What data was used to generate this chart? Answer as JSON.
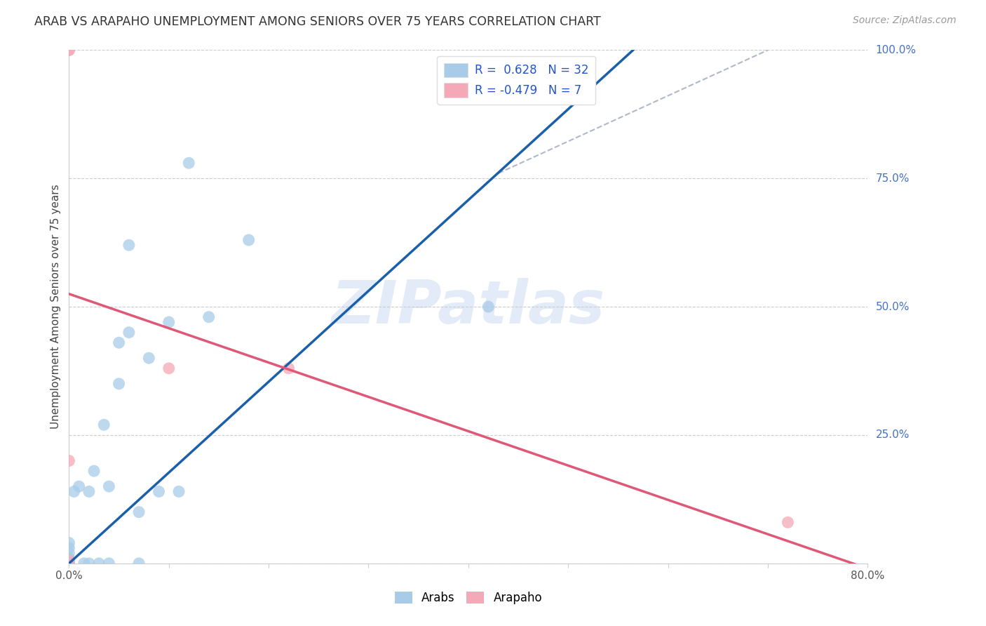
{
  "title": "ARAB VS ARAPAHO UNEMPLOYMENT AMONG SENIORS OVER 75 YEARS CORRELATION CHART",
  "source": "Source: ZipAtlas.com",
  "ylabel": "Unemployment Among Seniors over 75 years",
  "xlim": [
    0.0,
    0.8
  ],
  "ylim": [
    0.0,
    1.0
  ],
  "xticks": [
    0.0,
    0.1,
    0.2,
    0.3,
    0.4,
    0.5,
    0.6,
    0.7,
    0.8
  ],
  "xticklabels": [
    "0.0%",
    "",
    "",
    "",
    "",
    "",
    "",
    "",
    "80.0%"
  ],
  "ytick_vals": [
    0.0,
    0.25,
    0.5,
    0.75,
    1.0
  ],
  "ytick_labels": [
    "",
    "25.0%",
    "50.0%",
    "75.0%",
    "100.0%"
  ],
  "arab_R": 0.628,
  "arab_N": 32,
  "arapaho_R": -0.479,
  "arapaho_N": 7,
  "arab_color": "#a8cce8",
  "arapaho_color": "#f4a8b8",
  "arab_line_color": "#1a5faa",
  "arapaho_line_color": "#e05878",
  "legend_R_color": "#2255cc",
  "watermark": "ZIPatlas",
  "background_color": "#ffffff",
  "arab_x": [
    0.0,
    0.0,
    0.0,
    0.0,
    0.0,
    0.0,
    0.0,
    0.0,
    0.005,
    0.01,
    0.015,
    0.02,
    0.02,
    0.025,
    0.03,
    0.035,
    0.04,
    0.04,
    0.05,
    0.05,
    0.06,
    0.06,
    0.07,
    0.07,
    0.08,
    0.09,
    0.1,
    0.11,
    0.12,
    0.14,
    0.18,
    0.42
  ],
  "arab_y": [
    0.0,
    0.0,
    0.0,
    0.0,
    0.01,
    0.02,
    0.03,
    0.04,
    0.14,
    0.15,
    0.0,
    0.0,
    0.14,
    0.18,
    0.0,
    0.27,
    0.0,
    0.15,
    0.35,
    0.43,
    0.45,
    0.62,
    0.0,
    0.1,
    0.4,
    0.14,
    0.47,
    0.14,
    0.78,
    0.48,
    0.63,
    0.5
  ],
  "arapaho_x": [
    0.0,
    0.0,
    0.0,
    0.0,
    0.1,
    0.22,
    0.72
  ],
  "arapaho_y": [
    0.005,
    1.0,
    1.0,
    0.2,
    0.38,
    0.38,
    0.08
  ],
  "arab_line_x0": 0.0,
  "arab_line_x1": 0.565,
  "arab_line_y0": 0.0,
  "arab_line_y1": 1.0,
  "arapaho_line_x0": 0.0,
  "arapaho_line_x1": 0.8,
  "arapaho_line_y0": 0.525,
  "arapaho_line_y1": -0.01,
  "dash_line_x0": 0.43,
  "dash_line_x1": 0.7,
  "dash_line_y0": 0.76,
  "dash_line_y1": 1.0
}
